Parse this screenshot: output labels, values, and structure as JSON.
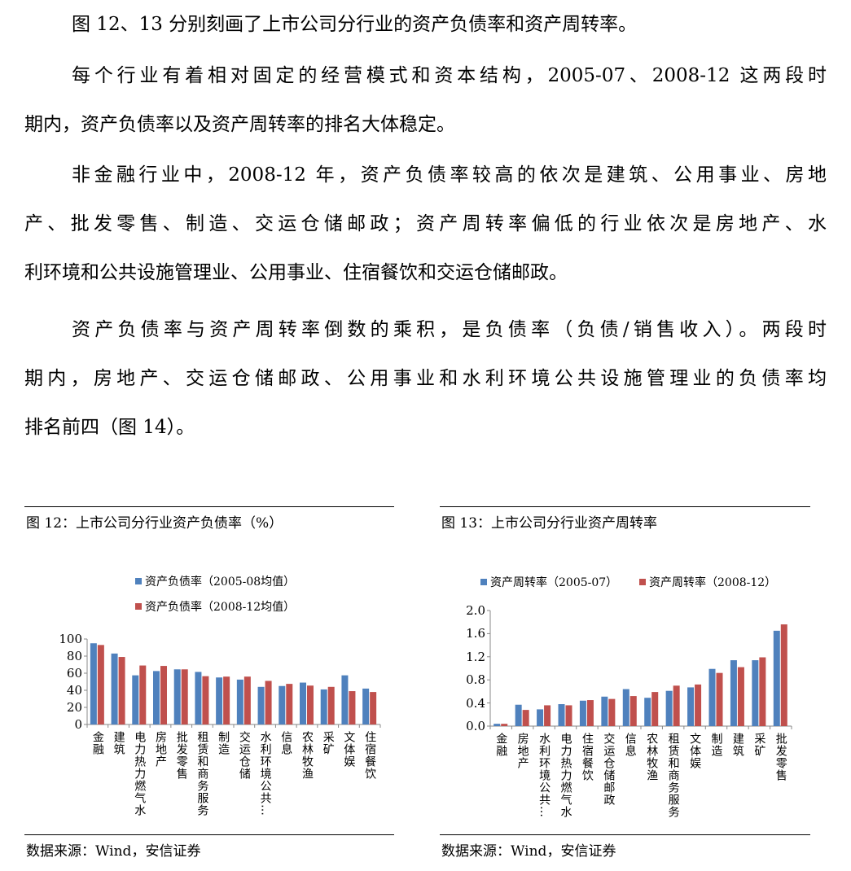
{
  "paragraphs": [
    [
      "图 12、13 分别刻画了上市公司分行业的资产负债率和资产周转率。"
    ],
    [
      "每个行业有着相对固定的经营模式和资本结构，2005-07、2008-12 这两段时",
      "期内，资产负债率以及资产周转率的排名大体稳定。"
    ],
    [
      "非金融行业中，2008-12 年，资产负债率较高的依次是建筑、公用事业、房地",
      "产、批发零售、制造、交运仓储邮政；资产周转率偏低的行业依次是房地产、水",
      "利环境和公共设施管理业、公用事业、住宿餐饮和交运仓储邮政。"
    ],
    [
      "资产负债率与资产周转率倒数的乘积，是负债率（负债/销售收入）。两段时",
      "期内，房地产、交运仓储邮政、公用事业和水利环境公共设施管理业的负债率均",
      "排名前四（图 14）。"
    ]
  ],
  "colors": {
    "series1": "#4F81BD",
    "series2": "#C0504D"
  },
  "chart_data": [
    {
      "type": "bar",
      "title": "图 12：上市公司分行业资产负债率（%）",
      "source": "数据来源：Wind，安信证券",
      "categories": [
        "金融",
        "建筑",
        "电力热力燃气水",
        "房地产",
        "批发零售",
        "租赁和商务服务",
        "制造",
        "交运仓储",
        "水利环境公共…",
        "信息",
        "农林牧渔",
        "采矿",
        "文体娱",
        "住宿餐饮"
      ],
      "series": [
        {
          "name": "资产负债率（2005-08均值）",
          "values": [
            95,
            83,
            57.5,
            62.5,
            64.5,
            61.5,
            55,
            52.5,
            44,
            45,
            49,
            41,
            57.5,
            42
          ]
        },
        {
          "name": "资产负债率（2008-12均值）",
          "values": [
            93,
            79,
            69,
            68.5,
            64.5,
            56.5,
            56,
            56,
            51,
            47.5,
            45.5,
            44,
            39,
            38
          ]
        }
      ],
      "ylim": [
        0,
        100
      ],
      "yticks": [
        "0",
        "20",
        "40",
        "60",
        "80",
        "100"
      ],
      "legend": "top",
      "grid": false
    },
    {
      "type": "bar",
      "title": "图 13：上市公司分行业资产周转率",
      "source": "数据来源：Wind，安信证券",
      "categories": [
        "金融",
        "房地产",
        "水利环境公共…",
        "电力热力燃气水",
        "住宿餐饮",
        "交运仓储邮政",
        "信息",
        "农林牧渔",
        "租赁和商务服务",
        "文体娱",
        "制造",
        "建筑",
        "采矿",
        "批发零售"
      ],
      "series": [
        {
          "name": "资产周转率（2005-07）",
          "values": [
            0.04,
            0.37,
            0.29,
            0.38,
            0.44,
            0.51,
            0.64,
            0.49,
            0.61,
            0.67,
            0.99,
            1.14,
            1.14,
            1.65
          ]
        },
        {
          "name": "资产周转率（2008-12）",
          "values": [
            0.04,
            0.28,
            0.36,
            0.36,
            0.45,
            0.47,
            0.52,
            0.59,
            0.7,
            0.72,
            0.92,
            1.02,
            1.19,
            1.76
          ]
        }
      ],
      "ylim": [
        0,
        2.0
      ],
      "yticks": [
        "0.0",
        "0.4",
        "0.8",
        "1.2",
        "1.6",
        "2.0"
      ],
      "legend": "top",
      "grid": false
    }
  ]
}
